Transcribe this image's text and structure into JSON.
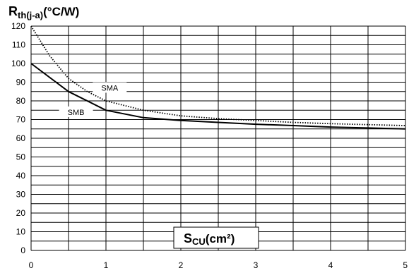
{
  "chart_data": {
    "type": "line",
    "title": "",
    "ylabel": "R_th(j-a)(°C/W)",
    "ylabel_parts": {
      "main": "R",
      "sub": "th(j-a)",
      "unit": "(°C/W)"
    },
    "xlabel": "S_CU(cm²)",
    "xlabel_parts": {
      "main": "S",
      "sub": "CU",
      "unit": "(cm²)"
    },
    "xlim": [
      0,
      5
    ],
    "ylim": [
      0,
      120
    ],
    "x_ticks": [
      0,
      1,
      2,
      3,
      4,
      5
    ],
    "y_ticks": [
      0,
      10,
      20,
      30,
      40,
      50,
      60,
      70,
      80,
      90,
      100,
      110,
      120
    ],
    "grid": true,
    "grid_x_step": 0.5,
    "grid_y_step": 5,
    "series": [
      {
        "name": "SMA",
        "style": "dotted",
        "color": "#000000",
        "x": [
          0,
          0.25,
          0.5,
          0.75,
          1,
          1.5,
          2,
          2.5,
          3,
          3.5,
          4,
          4.5,
          5
        ],
        "y": [
          120,
          104,
          92,
          85,
          80,
          75,
          72,
          70.5,
          69.5,
          68.5,
          67.8,
          67.3,
          66.8
        ]
      },
      {
        "name": "SMB",
        "style": "solid",
        "color": "#000000",
        "x": [
          0,
          0.5,
          1,
          1.5,
          2,
          2.5,
          3,
          3.5,
          4,
          4.5,
          5
        ],
        "y": [
          100,
          85,
          75,
          71,
          69.5,
          68.5,
          67.5,
          66.8,
          66,
          65.5,
          65
        ]
      }
    ],
    "series_labels": [
      {
        "name": "SMA",
        "at_x": 1.05,
        "at_y": 87
      },
      {
        "name": "SMB",
        "at_x": 0.6,
        "at_y": 74
      }
    ]
  }
}
